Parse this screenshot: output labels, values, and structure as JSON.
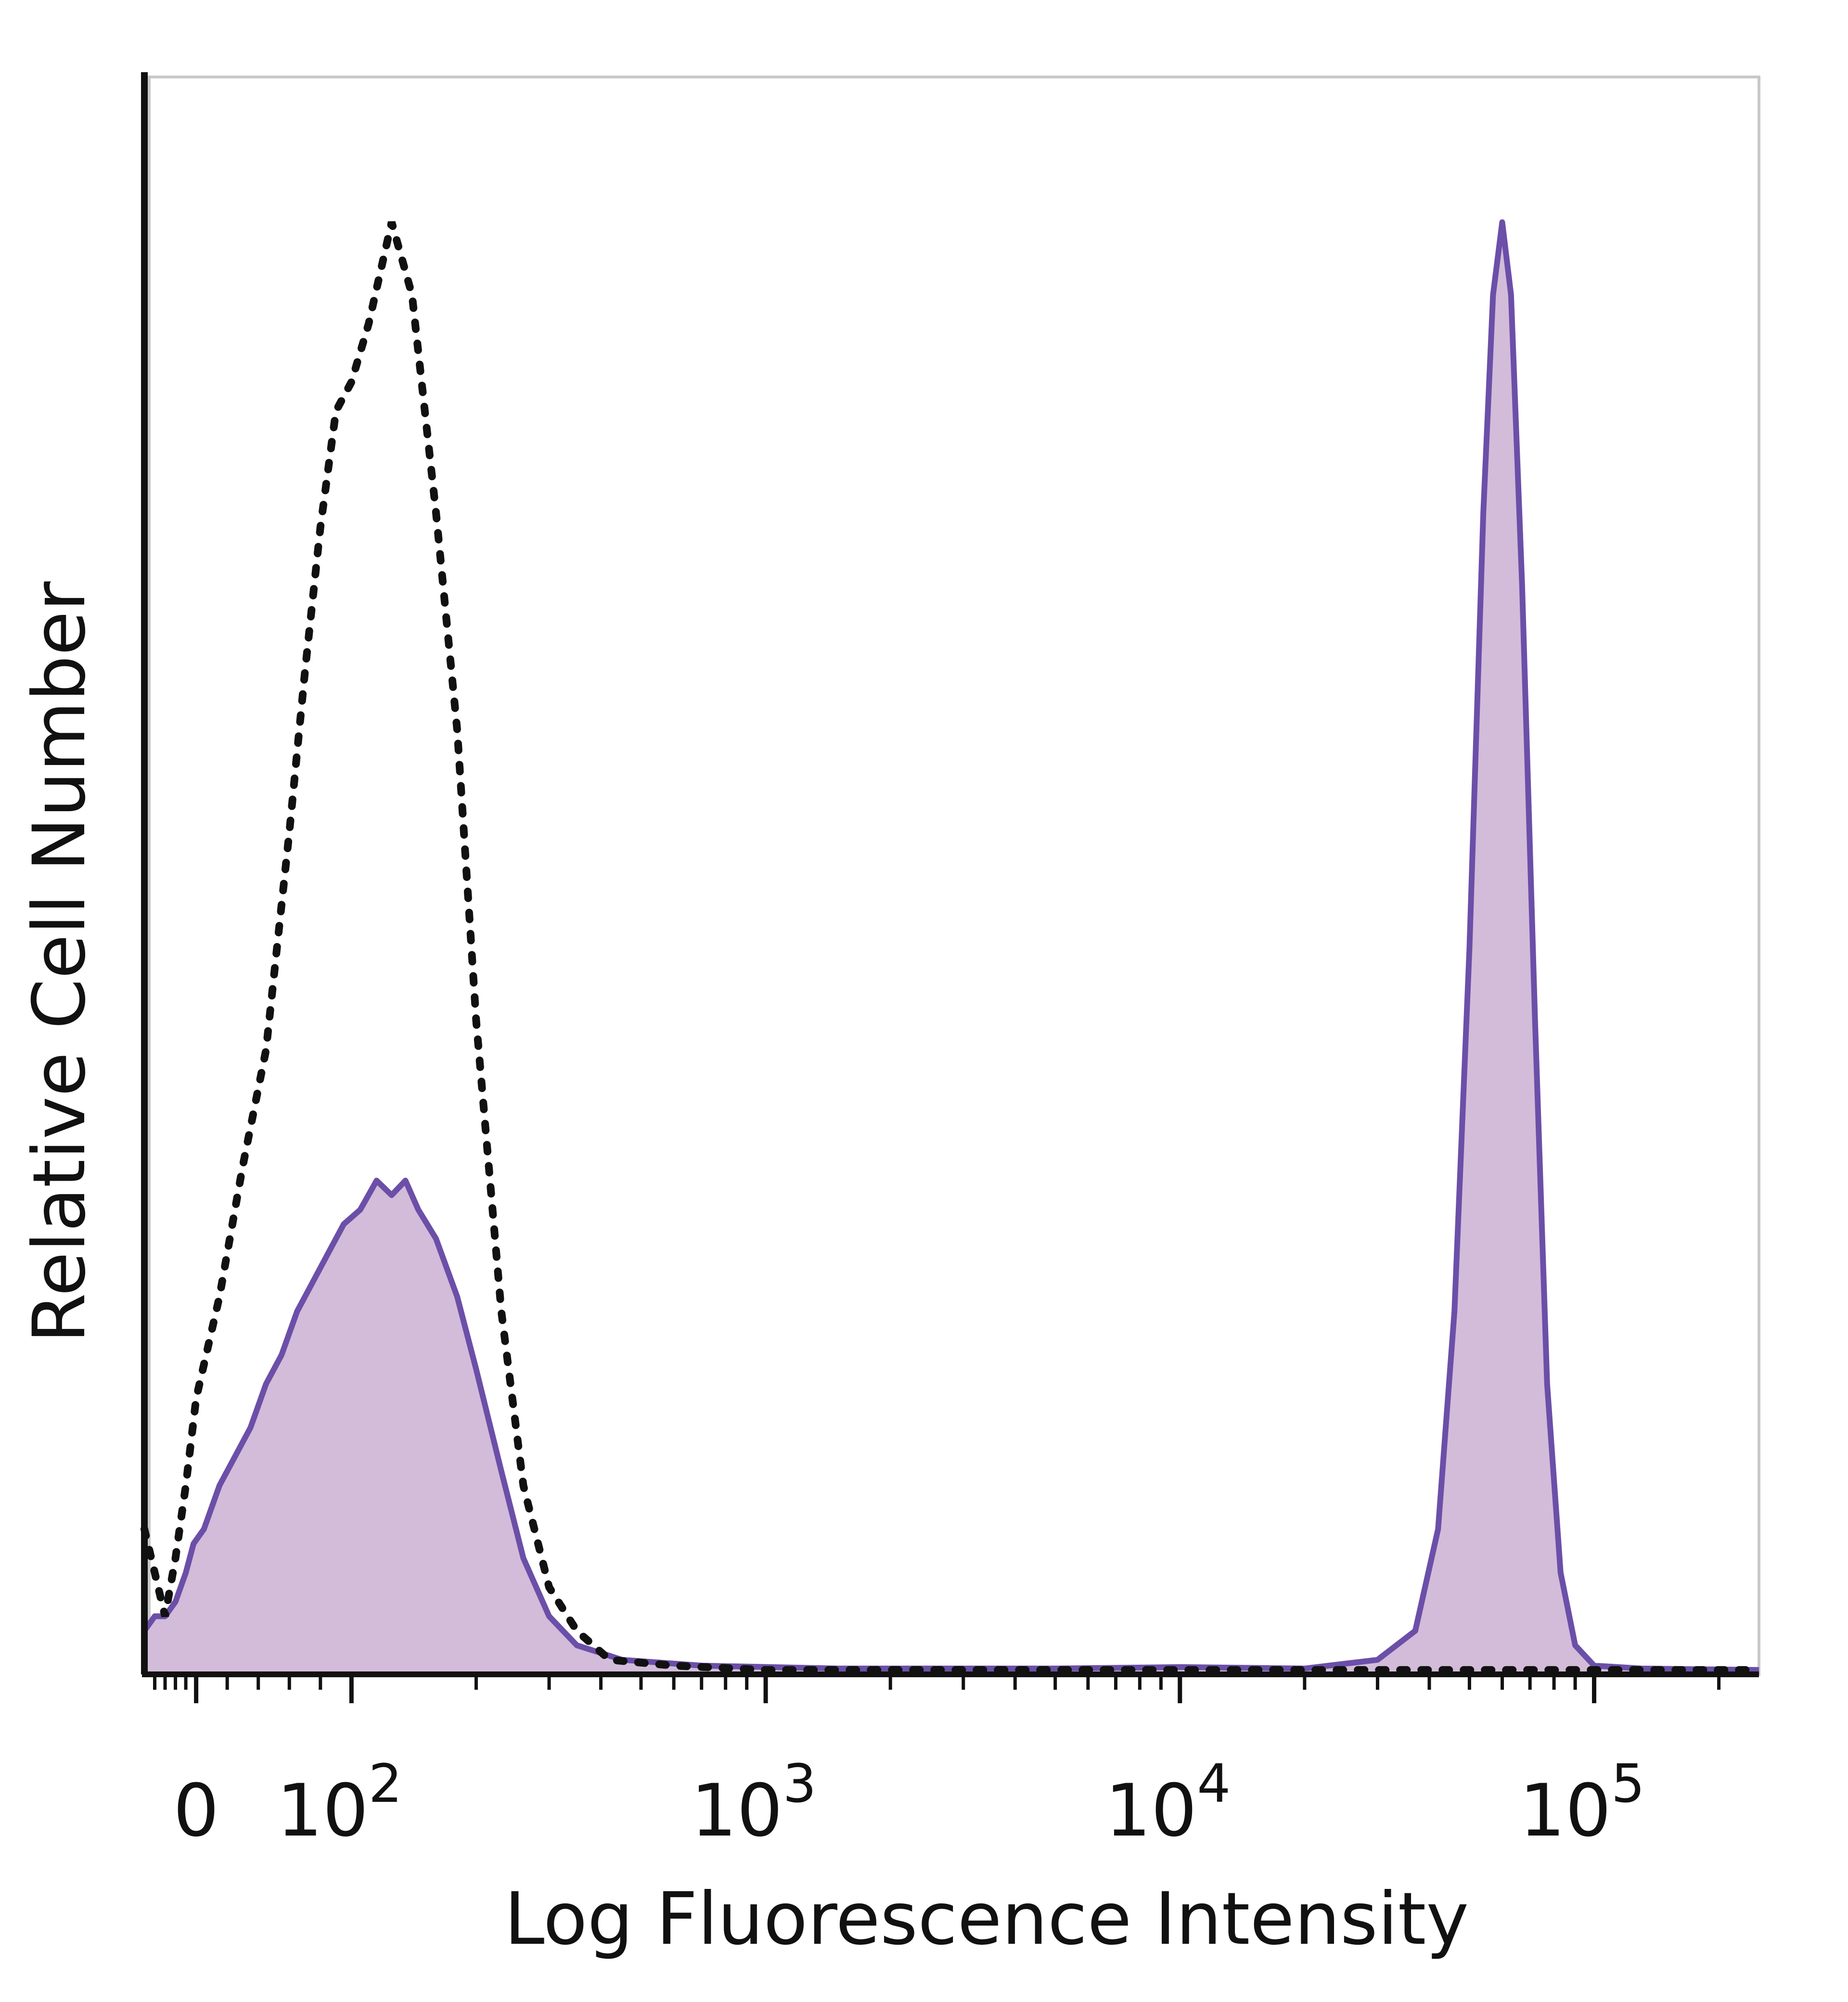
{
  "chart_data": {
    "type": "area",
    "x_scale": "biexponential",
    "xlabel": "Log Fluorescence Intensity",
    "ylabel": "Relative Cell Number",
    "xlim": [
      -100,
      250000
    ],
    "ylim": [
      0,
      110
    ],
    "grid": false,
    "legend": "none",
    "x_ticks": [
      {
        "value": 0,
        "base": "0",
        "exp": ""
      },
      {
        "value": 100,
        "base": "10",
        "exp": "2"
      },
      {
        "value": 1000,
        "base": "10",
        "exp": "3"
      },
      {
        "value": 10000,
        "base": "10",
        "exp": "4"
      },
      {
        "value": 100000,
        "base": "10",
        "exp": "5"
      }
    ],
    "series": [
      {
        "style": "dotted-outline",
        "color": "#111111",
        "points": [
          [
            -100,
            10
          ],
          [
            -80,
            7
          ],
          [
            -60,
            4
          ],
          [
            -40,
            8
          ],
          [
            -20,
            13
          ],
          [
            0,
            19
          ],
          [
            15,
            26
          ],
          [
            30,
            35
          ],
          [
            45,
            43
          ],
          [
            60,
            58
          ],
          [
            70,
            69
          ],
          [
            80,
            79
          ],
          [
            90,
            87
          ],
          [
            100,
            89
          ],
          [
            110,
            93
          ],
          [
            125,
            100
          ],
          [
            140,
            95
          ],
          [
            160,
            80
          ],
          [
            180,
            65
          ],
          [
            200,
            45
          ],
          [
            230,
            25
          ],
          [
            260,
            13
          ],
          [
            300,
            6
          ],
          [
            350,
            3
          ],
          [
            420,
            1
          ],
          [
            600,
            0.6
          ],
          [
            1000,
            0.3
          ],
          [
            3000,
            0.3
          ],
          [
            10000,
            0.3
          ],
          [
            30000,
            0.3
          ],
          [
            100000,
            0.3
          ],
          [
            250000,
            0.3
          ]
        ]
      },
      {
        "style": "filled",
        "color": "#6b4fa8",
        "fill": "#d2bcd9",
        "points": [
          [
            -100,
            3
          ],
          [
            -80,
            4
          ],
          [
            -60,
            4
          ],
          [
            -40,
            5
          ],
          [
            -20,
            7
          ],
          [
            -5,
            9
          ],
          [
            5,
            10
          ],
          [
            15,
            13
          ],
          [
            25,
            15
          ],
          [
            35,
            17
          ],
          [
            45,
            20
          ],
          [
            55,
            22
          ],
          [
            65,
            25
          ],
          [
            75,
            27
          ],
          [
            85,
            29
          ],
          [
            95,
            31
          ],
          [
            105,
            32
          ],
          [
            115,
            34
          ],
          [
            125,
            33
          ],
          [
            135,
            34
          ],
          [
            145,
            32
          ],
          [
            160,
            30
          ],
          [
            180,
            26
          ],
          [
            200,
            21
          ],
          [
            230,
            14
          ],
          [
            260,
            8
          ],
          [
            300,
            4
          ],
          [
            350,
            2
          ],
          [
            450,
            1
          ],
          [
            700,
            0.6
          ],
          [
            1500,
            0.4
          ],
          [
            5000,
            0.4
          ],
          [
            10000,
            0.5
          ],
          [
            20000,
            0.4
          ],
          [
            30000,
            1
          ],
          [
            37000,
            3
          ],
          [
            42000,
            10
          ],
          [
            46000,
            25
          ],
          [
            50000,
            50
          ],
          [
            54000,
            80
          ],
          [
            57000,
            95
          ],
          [
            60000,
            100
          ],
          [
            63000,
            95
          ],
          [
            67000,
            75
          ],
          [
            72000,
            45
          ],
          [
            77000,
            20
          ],
          [
            83000,
            7
          ],
          [
            90000,
            2
          ],
          [
            100000,
            0.6
          ],
          [
            130000,
            0.4
          ],
          [
            250000,
            0.3
          ]
        ]
      }
    ]
  }
}
